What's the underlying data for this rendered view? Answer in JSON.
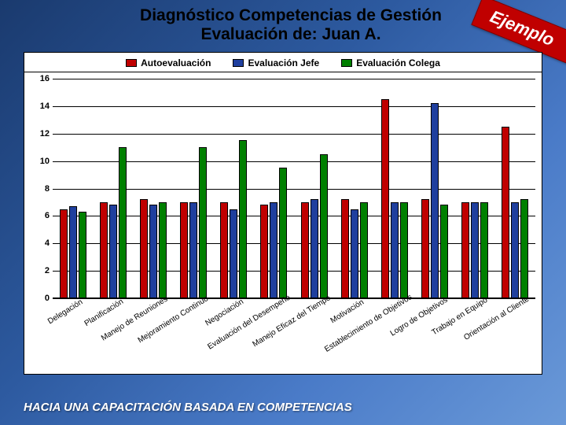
{
  "title": {
    "line1": "Diagnóstico Competencias de Gestión",
    "line2": "Evaluación de: Juan A."
  },
  "badge": "Ejemplo",
  "footer": "HACIA UNA CAPACITACIÓN BASADA EN COMPETENCIAS",
  "chart": {
    "type": "bar",
    "series": [
      {
        "label": "Autoevaluación",
        "color": "#c00000"
      },
      {
        "label": "Evaluación Jefe",
        "color": "#1f3f9e"
      },
      {
        "label": "Evaluación Colega",
        "color": "#008000"
      }
    ],
    "categories": [
      "Delegación",
      "Planificación",
      "Manejo de Reuniones",
      "Mejoramiento Continuo",
      "Negociación",
      "Evaluación del Desempeño",
      "Manejo Eficaz del Tiempo",
      "Motivación",
      "Establecimiento de Objetivos",
      "Logro de Objetivos",
      "Trabajo en Equipo",
      "Orientación al Cliente"
    ],
    "values": [
      [
        6.5,
        6.7,
        6.3
      ],
      [
        7.0,
        6.8,
        11.0
      ],
      [
        7.2,
        6.8,
        7.0
      ],
      [
        7.0,
        7.0,
        11.0
      ],
      [
        7.0,
        6.5,
        11.5
      ],
      [
        6.8,
        7.0,
        9.5
      ],
      [
        7.0,
        7.2,
        10.5
      ],
      [
        7.2,
        6.5,
        7.0
      ],
      [
        14.5,
        7.0,
        7.0
      ],
      [
        7.2,
        14.2,
        6.8
      ],
      [
        7.0,
        7.0,
        7.0
      ],
      [
        12.5,
        7.0,
        7.2
      ]
    ],
    "ymin": 0,
    "ymax": 16,
    "ytick_step": 2,
    "grid_color": "#000000",
    "background_color": "#ffffff",
    "label_fontsize": 10,
    "tick_fontsize": 11
  }
}
